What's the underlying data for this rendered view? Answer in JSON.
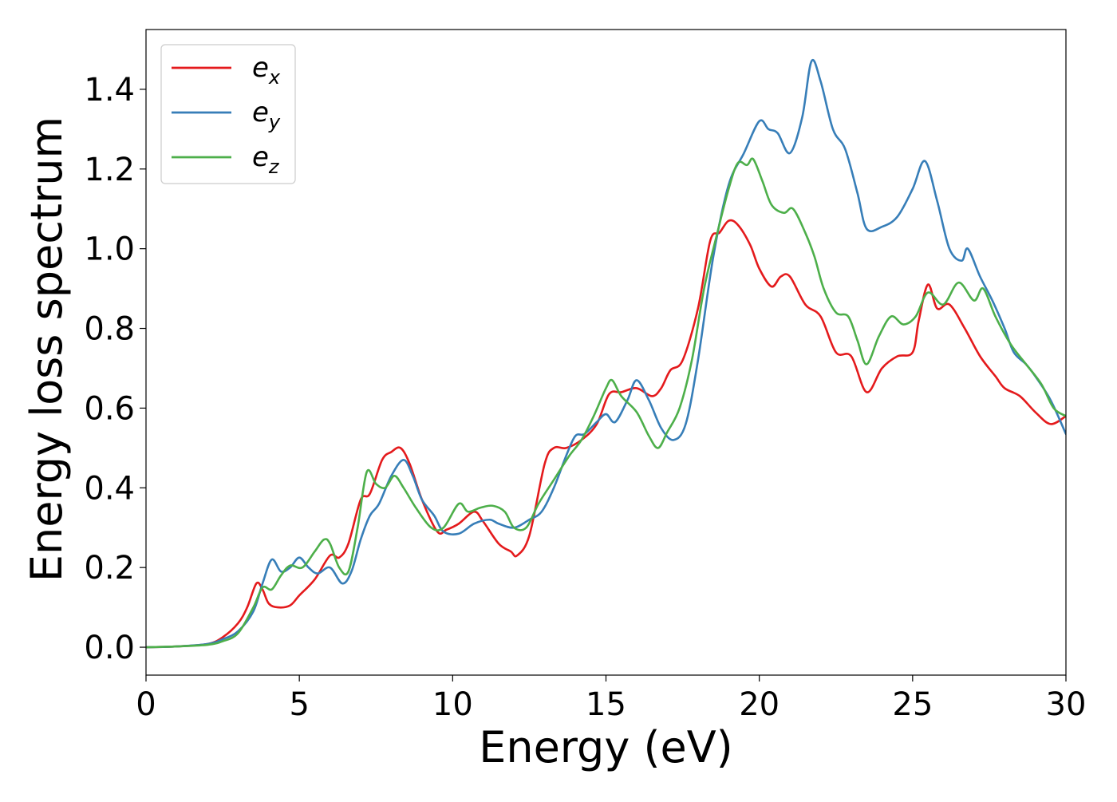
{
  "chart_data": {
    "type": "line",
    "title": "",
    "xlabel": "Energy (eV)",
    "ylabel": "Energy loss spectrum",
    "xlim": [
      0,
      30
    ],
    "ylim": [
      -0.07,
      1.55
    ],
    "xticks": [
      0,
      5,
      10,
      15,
      20,
      25,
      30
    ],
    "xtick_labels": [
      "0",
      "5",
      "10",
      "15",
      "20",
      "25",
      "30"
    ],
    "yticks": [
      0.0,
      0.2,
      0.4,
      0.6,
      0.8,
      1.0,
      1.2,
      1.4
    ],
    "ytick_labels": [
      "0.0",
      "0.2",
      "0.4",
      "0.6",
      "0.8",
      "1.0",
      "1.2",
      "1.4"
    ],
    "grid": false,
    "legend_position": "top-left",
    "series": [
      {
        "name": "e_x",
        "label_base": "e",
        "label_sub": "x",
        "color": "#e41a1c",
        "points": [
          [
            0,
            0
          ],
          [
            1,
            0.002
          ],
          [
            2,
            0.008
          ],
          [
            2.5,
            0.025
          ],
          [
            3,
            0.06
          ],
          [
            3.3,
            0.1
          ],
          [
            3.6,
            0.16
          ],
          [
            3.8,
            0.145
          ],
          [
            4,
            0.11
          ],
          [
            4.3,
            0.1
          ],
          [
            4.7,
            0.105
          ],
          [
            5,
            0.13
          ],
          [
            5.5,
            0.17
          ],
          [
            6,
            0.23
          ],
          [
            6.3,
            0.225
          ],
          [
            6.6,
            0.26
          ],
          [
            7,
            0.37
          ],
          [
            7.3,
            0.385
          ],
          [
            7.7,
            0.47
          ],
          [
            8,
            0.49
          ],
          [
            8.3,
            0.5
          ],
          [
            8.6,
            0.46
          ],
          [
            9,
            0.37
          ],
          [
            9.5,
            0.29
          ],
          [
            9.8,
            0.295
          ],
          [
            10.2,
            0.31
          ],
          [
            10.7,
            0.34
          ],
          [
            11,
            0.315
          ],
          [
            11.5,
            0.26
          ],
          [
            11.9,
            0.24
          ],
          [
            12.1,
            0.23
          ],
          [
            12.5,
            0.28
          ],
          [
            13,
            0.46
          ],
          [
            13.3,
            0.5
          ],
          [
            13.7,
            0.5
          ],
          [
            14.2,
            0.52
          ],
          [
            14.7,
            0.56
          ],
          [
            15.1,
            0.635
          ],
          [
            15.5,
            0.64
          ],
          [
            16,
            0.65
          ],
          [
            16.5,
            0.63
          ],
          [
            16.8,
            0.65
          ],
          [
            17.1,
            0.695
          ],
          [
            17.5,
            0.72
          ],
          [
            18,
            0.85
          ],
          [
            18.4,
            1.02
          ],
          [
            18.7,
            1.04
          ],
          [
            19,
            1.07
          ],
          [
            19.3,
            1.06
          ],
          [
            19.7,
            1.01
          ],
          [
            20,
            0.95
          ],
          [
            20.4,
            0.905
          ],
          [
            20.7,
            0.93
          ],
          [
            21,
            0.93
          ],
          [
            21.5,
            0.86
          ],
          [
            22,
            0.83
          ],
          [
            22.5,
            0.74
          ],
          [
            23,
            0.73
          ],
          [
            23.5,
            0.64
          ],
          [
            24,
            0.7
          ],
          [
            24.5,
            0.73
          ],
          [
            25,
            0.74
          ],
          [
            25.2,
            0.82
          ],
          [
            25.5,
            0.91
          ],
          [
            25.8,
            0.85
          ],
          [
            26.2,
            0.86
          ],
          [
            26.7,
            0.8
          ],
          [
            27.2,
            0.73
          ],
          [
            27.7,
            0.68
          ],
          [
            28,
            0.65
          ],
          [
            28.5,
            0.63
          ],
          [
            29,
            0.59
          ],
          [
            29.5,
            0.56
          ],
          [
            30,
            0.58
          ]
        ]
      },
      {
        "name": "e_y",
        "label_base": "e",
        "label_sub": "y",
        "color": "#377eb8",
        "points": [
          [
            0,
            0
          ],
          [
            1,
            0.002
          ],
          [
            2,
            0.008
          ],
          [
            2.5,
            0.02
          ],
          [
            3,
            0.04
          ],
          [
            3.5,
            0.09
          ],
          [
            3.8,
            0.16
          ],
          [
            4.1,
            0.22
          ],
          [
            4.4,
            0.19
          ],
          [
            4.7,
            0.2
          ],
          [
            5,
            0.225
          ],
          [
            5.3,
            0.2
          ],
          [
            5.6,
            0.185
          ],
          [
            6,
            0.2
          ],
          [
            6.4,
            0.16
          ],
          [
            6.7,
            0.19
          ],
          [
            7,
            0.27
          ],
          [
            7.3,
            0.33
          ],
          [
            7.6,
            0.36
          ],
          [
            8,
            0.43
          ],
          [
            8.4,
            0.47
          ],
          [
            8.7,
            0.43
          ],
          [
            9,
            0.37
          ],
          [
            9.4,
            0.33
          ],
          [
            9.7,
            0.29
          ],
          [
            10.2,
            0.285
          ],
          [
            10.7,
            0.31
          ],
          [
            11.2,
            0.32
          ],
          [
            11.5,
            0.31
          ],
          [
            12,
            0.3
          ],
          [
            12.5,
            0.32
          ],
          [
            12.9,
            0.34
          ],
          [
            13.3,
            0.4
          ],
          [
            13.7,
            0.48
          ],
          [
            14,
            0.53
          ],
          [
            14.3,
            0.535
          ],
          [
            14.7,
            0.565
          ],
          [
            15,
            0.585
          ],
          [
            15.3,
            0.565
          ],
          [
            15.7,
            0.62
          ],
          [
            16,
            0.67
          ],
          [
            16.4,
            0.62
          ],
          [
            16.8,
            0.55
          ],
          [
            17.2,
            0.52
          ],
          [
            17.6,
            0.56
          ],
          [
            18,
            0.72
          ],
          [
            18.5,
            0.98
          ],
          [
            19,
            1.16
          ],
          [
            19.5,
            1.24
          ],
          [
            20,
            1.32
          ],
          [
            20.3,
            1.3
          ],
          [
            20.6,
            1.29
          ],
          [
            21,
            1.24
          ],
          [
            21.4,
            1.33
          ],
          [
            21.7,
            1.47
          ],
          [
            22,
            1.42
          ],
          [
            22.4,
            1.3
          ],
          [
            22.8,
            1.25
          ],
          [
            23.2,
            1.14
          ],
          [
            23.5,
            1.05
          ],
          [
            24,
            1.055
          ],
          [
            24.5,
            1.08
          ],
          [
            25,
            1.15
          ],
          [
            25.4,
            1.22
          ],
          [
            25.8,
            1.12
          ],
          [
            26.2,
            1.0
          ],
          [
            26.6,
            0.97
          ],
          [
            26.8,
            1.0
          ],
          [
            27.2,
            0.93
          ],
          [
            27.6,
            0.87
          ],
          [
            28,
            0.8
          ],
          [
            28.3,
            0.74
          ],
          [
            28.7,
            0.71
          ],
          [
            29,
            0.68
          ],
          [
            29.5,
            0.62
          ],
          [
            30,
            0.535
          ]
        ]
      },
      {
        "name": "e_z",
        "label_base": "e",
        "label_sub": "z",
        "color": "#4daf4a",
        "points": [
          [
            0,
            0
          ],
          [
            1,
            0.002
          ],
          [
            2,
            0.006
          ],
          [
            2.5,
            0.015
          ],
          [
            3,
            0.035
          ],
          [
            3.5,
            0.1
          ],
          [
            3.8,
            0.15
          ],
          [
            4.1,
            0.145
          ],
          [
            4.4,
            0.18
          ],
          [
            4.7,
            0.205
          ],
          [
            5.1,
            0.2
          ],
          [
            5.5,
            0.24
          ],
          [
            5.8,
            0.27
          ],
          [
            6,
            0.26
          ],
          [
            6.3,
            0.2
          ],
          [
            6.6,
            0.19
          ],
          [
            6.9,
            0.3
          ],
          [
            7.2,
            0.44
          ],
          [
            7.5,
            0.41
          ],
          [
            7.8,
            0.4
          ],
          [
            8.1,
            0.43
          ],
          [
            8.4,
            0.4
          ],
          [
            8.8,
            0.35
          ],
          [
            9.3,
            0.3
          ],
          [
            9.7,
            0.3
          ],
          [
            10.2,
            0.36
          ],
          [
            10.5,
            0.34
          ],
          [
            10.9,
            0.35
          ],
          [
            11.3,
            0.355
          ],
          [
            11.7,
            0.34
          ],
          [
            12,
            0.3
          ],
          [
            12.4,
            0.3
          ],
          [
            12.8,
            0.36
          ],
          [
            13.3,
            0.42
          ],
          [
            13.8,
            0.48
          ],
          [
            14.2,
            0.52
          ],
          [
            14.6,
            0.58
          ],
          [
            15,
            0.65
          ],
          [
            15.2,
            0.67
          ],
          [
            15.5,
            0.63
          ],
          [
            16,
            0.59
          ],
          [
            16.4,
            0.53
          ],
          [
            16.7,
            0.5
          ],
          [
            17,
            0.54
          ],
          [
            17.4,
            0.6
          ],
          [
            17.8,
            0.72
          ],
          [
            18.2,
            0.9
          ],
          [
            18.6,
            1.03
          ],
          [
            19,
            1.15
          ],
          [
            19.3,
            1.215
          ],
          [
            19.6,
            1.21
          ],
          [
            19.8,
            1.225
          ],
          [
            20.1,
            1.17
          ],
          [
            20.4,
            1.11
          ],
          [
            20.8,
            1.09
          ],
          [
            21.1,
            1.1
          ],
          [
            21.5,
            1.04
          ],
          [
            21.8,
            0.98
          ],
          [
            22.1,
            0.9
          ],
          [
            22.5,
            0.84
          ],
          [
            22.9,
            0.83
          ],
          [
            23.2,
            0.77
          ],
          [
            23.5,
            0.71
          ],
          [
            23.9,
            0.78
          ],
          [
            24.3,
            0.83
          ],
          [
            24.7,
            0.81
          ],
          [
            25.1,
            0.83
          ],
          [
            25.5,
            0.89
          ],
          [
            26,
            0.86
          ],
          [
            26.5,
            0.915
          ],
          [
            27,
            0.87
          ],
          [
            27.3,
            0.9
          ],
          [
            27.7,
            0.83
          ],
          [
            28.2,
            0.76
          ],
          [
            28.7,
            0.71
          ],
          [
            29.2,
            0.66
          ],
          [
            29.6,
            0.6
          ],
          [
            30,
            0.58
          ]
        ]
      }
    ]
  }
}
